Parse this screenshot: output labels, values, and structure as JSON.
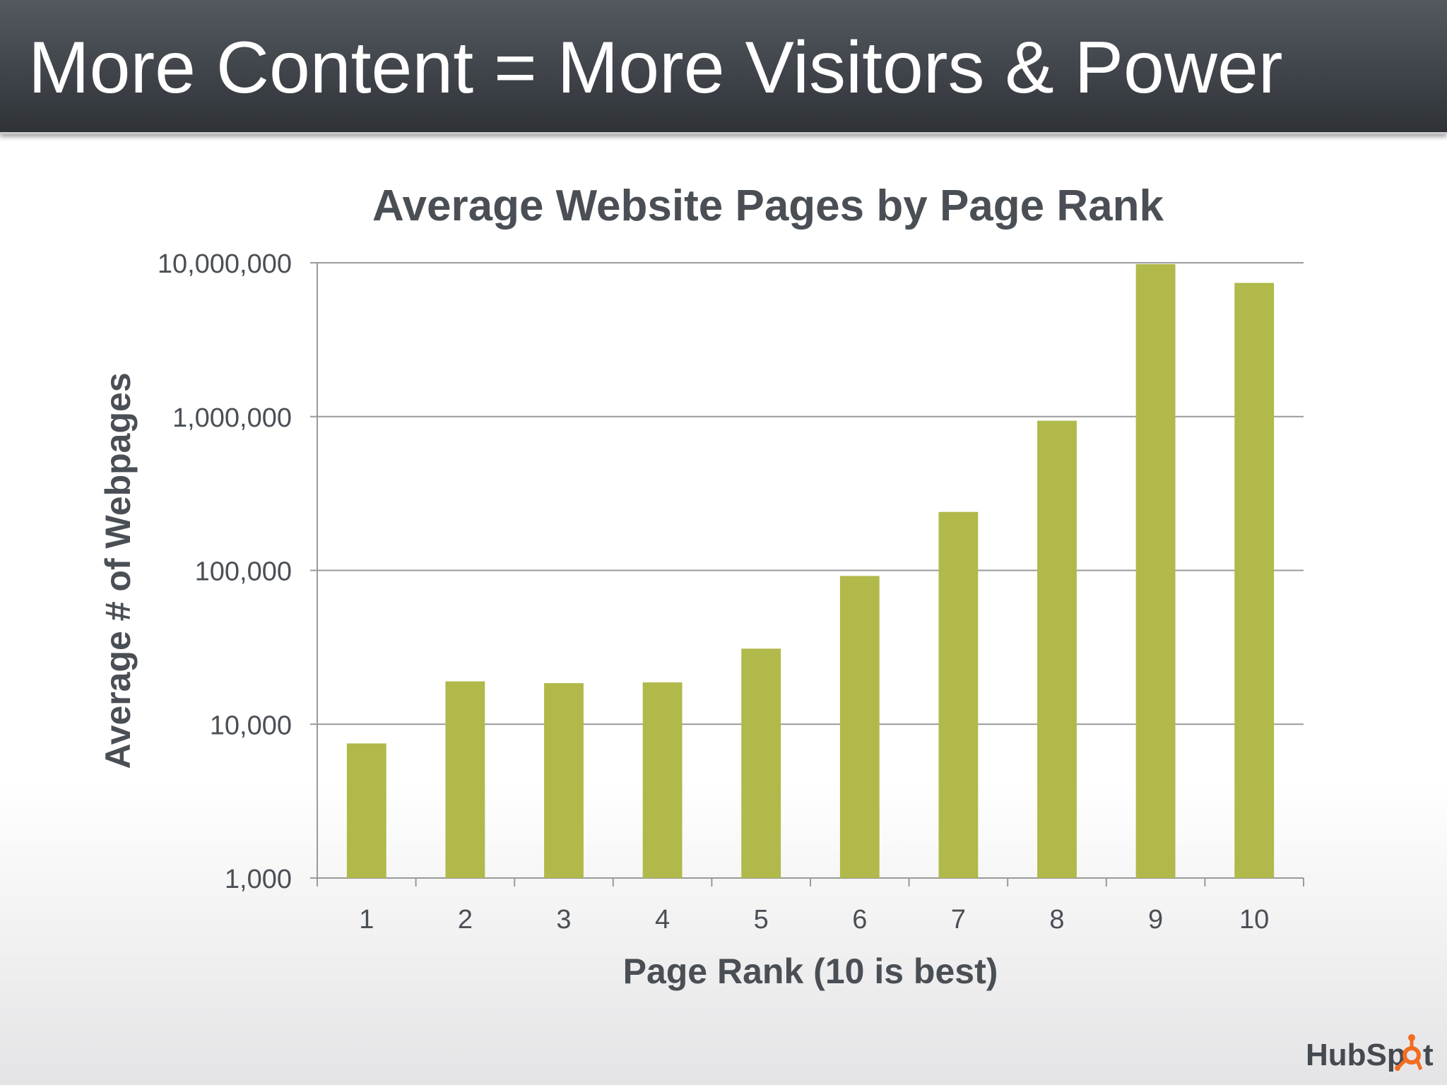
{
  "slide": {
    "title": "More Content = More Visitors & Power",
    "logo_text": "HubSpot"
  },
  "colors": {
    "bar": "#b0b94a",
    "title_bar": "#3f4348",
    "text": "#4a4f55",
    "grid": "#9a9a9a",
    "logo_orange": "#f26c21"
  },
  "chart_data": {
    "type": "bar",
    "title": "Average Website Pages by Page Rank",
    "xlabel": "Page Rank (10 is best)",
    "ylabel": "Average # of Webpages",
    "yscale": "log",
    "ylim": [
      1000,
      10000000
    ],
    "yticks": [
      1000,
      10000,
      100000,
      1000000,
      10000000
    ],
    "ytick_labels": [
      "1,000",
      "10,000",
      "100,000",
      "1,000,000",
      "10,000,000"
    ],
    "categories": [
      "1",
      "2",
      "3",
      "4",
      "5",
      "6",
      "7",
      "8",
      "9",
      "10"
    ],
    "values": [
      7500,
      19000,
      18500,
      18700,
      31000,
      92000,
      240000,
      940000,
      9800000,
      7400000
    ],
    "grid": true,
    "legend": "none"
  }
}
